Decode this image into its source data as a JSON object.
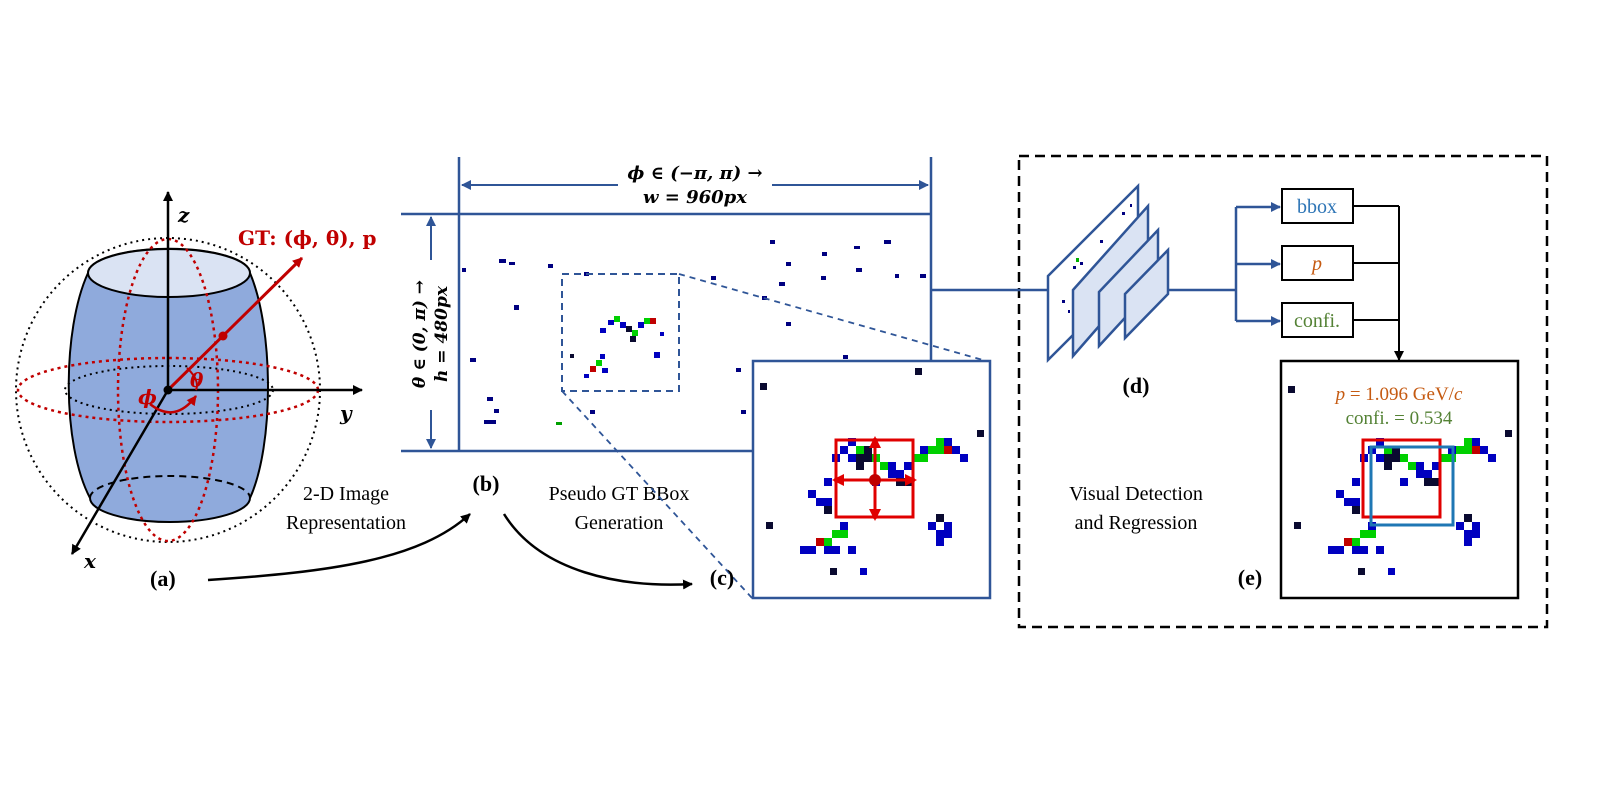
{
  "panel_a": {
    "axis_z": "z",
    "axis_y": "y",
    "axis_x": "x",
    "gt_label": "GT: (ϕ, θ), p",
    "phi_label": "ϕ",
    "theta_label": "θ",
    "letter": "(a)"
  },
  "caption_2d": {
    "line1": "2-D Image",
    "line2": "Representation"
  },
  "panel_b": {
    "letter": "(b)",
    "width_line1": "ϕ ∈ (−π, π) →",
    "width_line2": "w = 960px",
    "height_line1": "θ ∈ (0, π) →",
    "height_line2": "h = 480px"
  },
  "caption_pseudo": {
    "line1": "Pseudo GT BBox",
    "line2": "Generation"
  },
  "panel_c": {
    "letter": "(c)"
  },
  "panel_d": {
    "letter": "(d)"
  },
  "caption_visual": {
    "line1": "Visual Detection",
    "line2": "and Regression"
  },
  "outputs": {
    "bbox": "bbox",
    "p": "p",
    "conf": "confi."
  },
  "panel_e": {
    "letter": "(e)",
    "p_sym": "p",
    "p_value": " = 1.096 GeV/",
    "p_unit": "c",
    "conf_text": "confi. = 0.534"
  },
  "colors": {
    "frame_blue": "#2f5597",
    "gt_red": "#c00000",
    "cylinder_fill": "#8faadc",
    "pixel_blue": "#0000c0",
    "pixel_green": "#00d000",
    "pixel_red": "#c00000",
    "pixel_dark": "#0a0a30",
    "pred_box_blue": "#1f77b4",
    "p_orange": "#c55a11",
    "conf_green": "#548235",
    "bbox_text_blue": "#2e75b6"
  }
}
